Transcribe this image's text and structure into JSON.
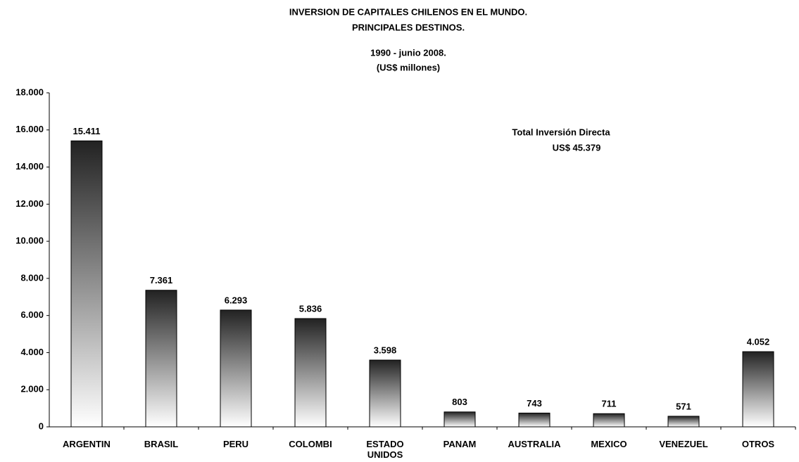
{
  "chart_data": {
    "type": "bar",
    "title": "INVERSION DE CAPITALES CHILENOS EN EL MUNDO.",
    "subtitle": "PRINCIPALES DESTINOS.",
    "subtitle2": "1990 - junio 2008.",
    "unit_label": "(US$ millones)",
    "annotation": [
      "Total Inversión Directa",
      "US$ 45.379"
    ],
    "categories": [
      "ARGENTIN",
      "BRASIL",
      "PERU",
      "COLOMBI",
      "ESTADO UNIDOS",
      "PANAM",
      "AUSTRALIA",
      "MEXICO",
      "VENEZUEL",
      "OTROS"
    ],
    "values": [
      15411,
      7361,
      6293,
      5836,
      3598,
      803,
      743,
      711,
      571,
      4052
    ],
    "value_labels": [
      "15.411",
      "7.361",
      "6.293",
      "5.836",
      "3.598",
      "803",
      "743",
      "711",
      "571",
      "4.052"
    ],
    "color": "#222222",
    "ylim": [
      0,
      18000
    ],
    "yticks": [
      0,
      {
        "value": 2000,
        "label": "2.000"
      },
      {
        "value": 4000,
        "label": "4.000"
      },
      {
        "value": 6000,
        "label": "6.000"
      },
      {
        "value": 8000,
        "label": "8.000"
      },
      {
        "value": 10000,
        "label": "10.000"
      },
      {
        "value": 12000,
        "label": "12.000"
      },
      {
        "value": 14000,
        "label": "14.000"
      },
      {
        "value": 16000,
        "label": "16.000"
      },
      {
        "value": 18000,
        "label": "18.000"
      }
    ],
    "grid": false
  }
}
